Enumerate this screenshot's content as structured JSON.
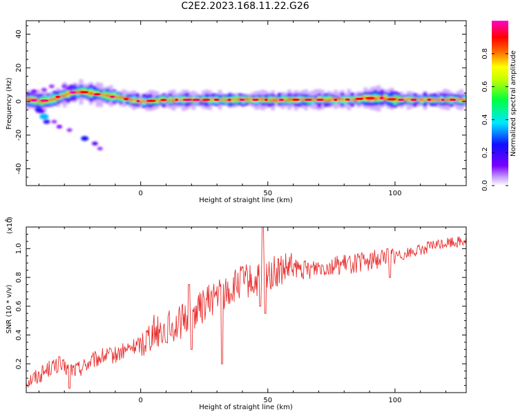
{
  "title": "C2E2.2023.168.11.22.G26",
  "chart_data": [
    {
      "type": "heatmap",
      "xlabel": "Height of straight line (km)",
      "ylabel": "Frequency (Hz)",
      "xlim": [
        -45,
        128
      ],
      "ylim": [
        -50,
        48
      ],
      "xticks": [
        0,
        50,
        100
      ],
      "yticks": [
        -40,
        -20,
        0,
        20,
        40
      ],
      "grid": false,
      "colorbar": {
        "label": "Normalized spectral amplitude",
        "range": [
          0.0,
          1.0
        ],
        "ticks": [
          "0.0",
          "0.2",
          "0.4",
          "0.6",
          "0.8"
        ],
        "colormap": "rainbow (purple-blue-cyan-green-yellow-red-magenta)"
      },
      "ridge": [
        {
          "x": -43,
          "y": 1
        },
        {
          "x": -40,
          "y": 0
        },
        {
          "x": -36,
          "y": 1
        },
        {
          "x": -32,
          "y": 3
        },
        {
          "x": -28,
          "y": 5
        },
        {
          "x": -24,
          "y": 6
        },
        {
          "x": -20,
          "y": 5
        },
        {
          "x": -16,
          "y": 4
        },
        {
          "x": -12,
          "y": 3
        },
        {
          "x": -8,
          "y": 2
        },
        {
          "x": -4,
          "y": 1
        },
        {
          "x": 0,
          "y": 0
        },
        {
          "x": 10,
          "y": 1
        },
        {
          "x": 20,
          "y": 1
        },
        {
          "x": 30,
          "y": 1
        },
        {
          "x": 40,
          "y": 1
        },
        {
          "x": 50,
          "y": 1
        },
        {
          "x": 60,
          "y": 1
        },
        {
          "x": 70,
          "y": 1
        },
        {
          "x": 80,
          "y": 1
        },
        {
          "x": 90,
          "y": 2
        },
        {
          "x": 95,
          "y": 2
        },
        {
          "x": 100,
          "y": 1
        },
        {
          "x": 110,
          "y": 1
        },
        {
          "x": 120,
          "y": 1
        },
        {
          "x": 128,
          "y": 1
        }
      ],
      "scatter_blobs": [
        {
          "x": -40,
          "y": -5,
          "v": 0.25
        },
        {
          "x": -38,
          "y": -9,
          "v": 0.35
        },
        {
          "x": -37,
          "y": -12,
          "v": 0.2
        },
        {
          "x": -39,
          "y": -6,
          "v": 0.15
        },
        {
          "x": -34,
          "y": -12,
          "v": 0.1
        },
        {
          "x": -32,
          "y": -15,
          "v": 0.12
        },
        {
          "x": -28,
          "y": -17,
          "v": 0.1
        },
        {
          "x": -22,
          "y": -22,
          "v": 0.25
        },
        {
          "x": -18,
          "y": -25,
          "v": 0.15
        },
        {
          "x": -16,
          "y": -28,
          "v": 0.1
        },
        {
          "x": -42,
          "y": 6,
          "v": 0.12
        },
        {
          "x": -38,
          "y": 7,
          "v": 0.1
        },
        {
          "x": -35,
          "y": 9,
          "v": 0.1
        },
        {
          "x": -30,
          "y": 9,
          "v": 0.1
        }
      ]
    },
    {
      "type": "line",
      "xlabel": "Height of straight line (km)",
      "ylabel": "SNR (10 * v/v)",
      "y_multiplier_label": "(x10",
      "y_multiplier_exp": "4",
      "xlim": [
        -45,
        128
      ],
      "ylim": [
        0.0,
        1.15
      ],
      "xticks": [
        0,
        50,
        100
      ],
      "yticks": [
        "0.2",
        "0.4",
        "0.6",
        "0.8",
        "1.0"
      ],
      "line_color": "#e83030",
      "series": [
        {
          "x": [
            -45,
            -40,
            -35,
            -30,
            -25,
            -20,
            -15,
            -10,
            -5,
            0,
            5,
            10,
            15,
            20,
            25,
            30,
            35,
            40,
            45,
            50,
            55,
            60,
            65,
            70,
            75,
            80,
            85,
            90,
            95,
            100,
            105,
            110,
            115,
            120,
            125,
            128
          ],
          "values": [
            0.08,
            0.12,
            0.18,
            0.17,
            0.16,
            0.21,
            0.25,
            0.26,
            0.3,
            0.34,
            0.43,
            0.44,
            0.48,
            0.54,
            0.61,
            0.68,
            0.7,
            0.78,
            0.76,
            0.82,
            0.84,
            0.86,
            0.85,
            0.88,
            0.88,
            0.89,
            0.9,
            0.91,
            0.94,
            0.95,
            0.97,
            0.99,
            1.02,
            1.04,
            1.05,
            1.06
          ]
        }
      ],
      "spikes": [
        {
          "x": -32,
          "y": 0.25
        },
        {
          "x": -28,
          "y": 0.03
        },
        {
          "x": 10,
          "y": 0.35
        },
        {
          "x": 19,
          "y": 0.75
        },
        {
          "x": 20,
          "y": 0.3
        },
        {
          "x": 32,
          "y": 0.2
        },
        {
          "x": 47,
          "y": 0.6
        },
        {
          "x": 48,
          "y": 1.16
        },
        {
          "x": 49,
          "y": 0.55
        },
        {
          "x": 97,
          "y": 1.0
        },
        {
          "x": 98,
          "y": 0.8
        }
      ]
    }
  ]
}
